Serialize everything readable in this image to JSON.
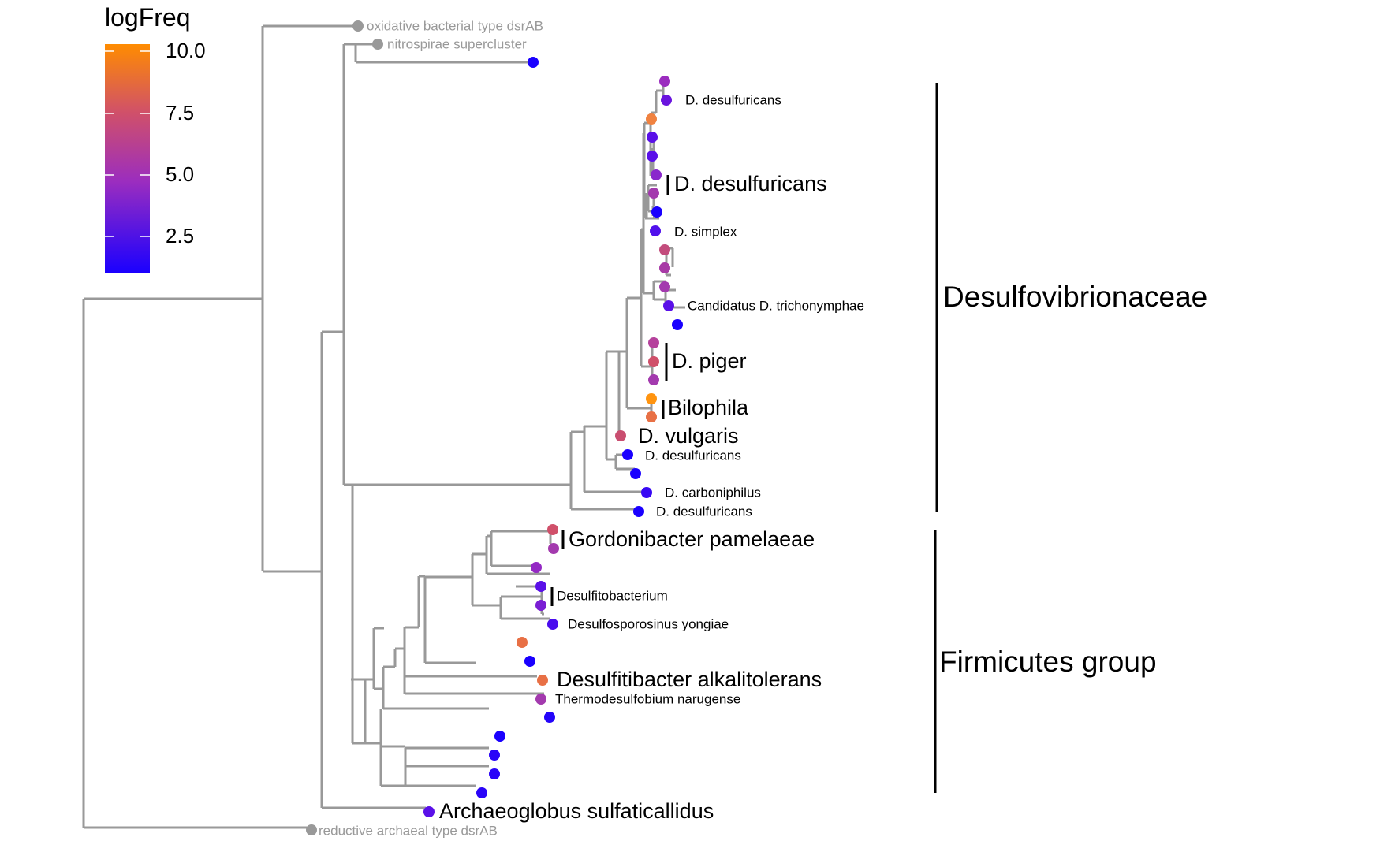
{
  "legend": {
    "title": "logFreq",
    "ticks": [
      "10.0",
      "7.5",
      "5.0",
      "2.5"
    ],
    "colors": {
      "high": "#FF8C00",
      "mid_high": "#D0506A",
      "mid": "#9B2DBF",
      "low": "#1A00FF"
    }
  },
  "tree": {
    "outgroup_labels": {
      "oxidative": "oxidative bacterial type dsrAB",
      "nitrospirae": "nitrospirae supercluster",
      "archaeal": "reductive archaeal type dsrAB",
      "archaeoglobus": "Archaeoglobus sulfaticallidus"
    },
    "tip_labels": {
      "desulfuricans_1": "D. desulfuricans",
      "desulfuricans_2": "D. desulfuricans",
      "simplex": "D. simplex",
      "trichonymphae": "Candidatus D. trichonymphae",
      "piger": "D. piger",
      "bilophila": "Bilophila",
      "vulgaris": "D. vulgaris",
      "desulfuricans_3": "D. desulfuricans",
      "carboniphilus": "D. carboniphilus",
      "desulfuricans_4": "D. desulfuricans",
      "gordonibacter": "Gordonibacter pamelaeae",
      "desulfitobacterium": "Desulfitobacterium",
      "desulfosporosinus": "Desulfosporosinus yongiae",
      "desulfitibacter": "Desulfitibacter alkalitolerans",
      "thermodesulfobium": "Thermodesulfobium narugense"
    },
    "clades": {
      "desulfovibrionaceae": "Desulfovibrionaceae",
      "firmicutes": "Firmicutes group"
    }
  }
}
